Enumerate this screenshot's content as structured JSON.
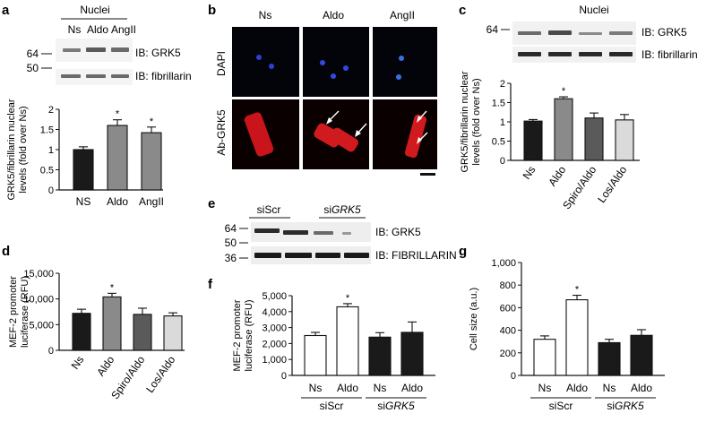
{
  "panel_letters": [
    "a",
    "b",
    "c",
    "d",
    "e",
    "f",
    "g"
  ],
  "panel_a": {
    "blot_header": "Nuclei",
    "lanes": [
      "Ns",
      "Aldo",
      "AngII"
    ],
    "mw_markers": [
      "64",
      "50"
    ],
    "ib_labels": [
      "IB: GRK5",
      "IB: fibrillarin"
    ]
  },
  "panel_b": {
    "columns": [
      "Ns",
      "Aldo",
      "AngII"
    ],
    "rows": [
      "DAPI",
      "Ab-GRK5"
    ]
  },
  "panel_c": {
    "blot_header": "Nuclei",
    "mw_markers": [
      "64"
    ],
    "ib_labels": [
      "IB: GRK5",
      "IB: fibrillarin"
    ]
  },
  "panel_e": {
    "groups": [
      "siScr",
      "si",
      "GRK5"
    ],
    "mw_markers": [
      "64",
      "50",
      "36"
    ],
    "ib_labels": [
      "IB: GRK5",
      "IB: FIBRILLARIN"
    ]
  },
  "chart_data": [
    {
      "panel": "a",
      "type": "bar",
      "categories": [
        "NS",
        "Aldo",
        "AngII"
      ],
      "values": [
        1.0,
        1.6,
        1.42
      ],
      "errors": [
        0.07,
        0.14,
        0.14
      ],
      "significance": [
        "",
        "*",
        "*"
      ],
      "ylabel": "GRK5/fibrillarin nuclear levels (fold over Ns)",
      "ylim": [
        0,
        2
      ],
      "yticks": [
        "0",
        "0.5",
        "1",
        "1.5",
        "2"
      ],
      "fills": [
        "#1a1a1a",
        "#8a8a8a",
        "#8a8a8a"
      ]
    },
    {
      "panel": "c",
      "type": "bar",
      "categories": [
        "Ns",
        "Aldo",
        "Spiro/Aldo",
        "Los/Aldo"
      ],
      "values": [
        1.02,
        1.6,
        1.1,
        1.05
      ],
      "errors": [
        0.04,
        0.05,
        0.13,
        0.14
      ],
      "significance": [
        "",
        "*",
        "",
        ""
      ],
      "ylabel": "GRK5/fibrillarin nuclear levels (fold over Ns)",
      "ylim": [
        0,
        2
      ],
      "yticks": [
        "0",
        "0.5",
        "1",
        "1.5",
        "2"
      ],
      "fills": [
        "#1a1a1a",
        "#8a8a8a",
        "#5a5a5a",
        "#dadada"
      ]
    },
    {
      "panel": "d",
      "type": "bar",
      "categories": [
        "Ns",
        "Aldo",
        "Spiro/Aldo",
        "Los/Aldo"
      ],
      "values": [
        7200,
        10400,
        7000,
        6700
      ],
      "errors": [
        800,
        700,
        1200,
        600
      ],
      "significance": [
        "",
        "*",
        "",
        ""
      ],
      "ylabel": "MEF-2 promoter luciferase (RFU)",
      "ylim": [
        0,
        15000
      ],
      "yticks": [
        "0",
        "5,000",
        "10,000",
        "15,000"
      ],
      "fills": [
        "#1a1a1a",
        "#8a8a8a",
        "#5a5a5a",
        "#dadada"
      ]
    },
    {
      "panel": "f",
      "type": "bar",
      "categories": [
        "Ns",
        "Aldo",
        "Ns",
        "Aldo"
      ],
      "groups": [
        {
          "name": "siScr"
        },
        {
          "name": "si",
          "name_italic": "GRK5"
        }
      ],
      "values": [
        2500,
        4300,
        2400,
        2700
      ],
      "errors": [
        200,
        200,
        280,
        650
      ],
      "significance": [
        "",
        "*",
        "",
        ""
      ],
      "ylabel": "MEF-2 promoter luciferase (RFU)",
      "ylim": [
        0,
        5000
      ],
      "yticks": [
        "0",
        "1,000",
        "2,000",
        "3,000",
        "4,000",
        "5,000"
      ],
      "fills": [
        "#ffffff",
        "#ffffff",
        "#1a1a1a",
        "#1a1a1a"
      ]
    },
    {
      "panel": "g",
      "type": "bar",
      "categories": [
        "Ns",
        "Aldo",
        "Ns",
        "Aldo"
      ],
      "groups": [
        {
          "name": "siScr"
        },
        {
          "name": "si",
          "name_italic": "GRK5"
        }
      ],
      "values": [
        320,
        670,
        290,
        355
      ],
      "errors": [
        30,
        40,
        30,
        50
      ],
      "significance": [
        "",
        "*",
        "",
        ""
      ],
      "ylabel": "Cell size (a.u.)",
      "ylim": [
        0,
        1000
      ],
      "yticks": [
        "0",
        "200",
        "400",
        "600",
        "800",
        "1,000"
      ],
      "fills": [
        "#ffffff",
        "#ffffff",
        "#1a1a1a",
        "#1a1a1a"
      ]
    }
  ]
}
